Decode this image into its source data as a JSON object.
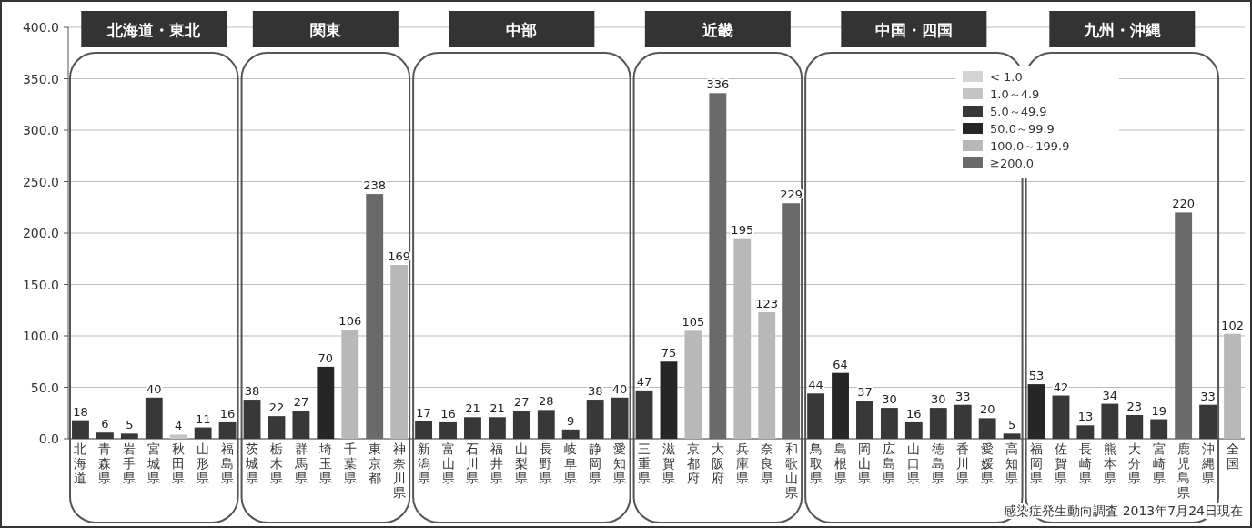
{
  "chart_data": {
    "type": "bar",
    "categories": [
      "北海道",
      "青森県",
      "岩手県",
      "宮城県",
      "秋田県",
      "山形県",
      "福島県",
      "茨城県",
      "栃木県",
      "群馬県",
      "埼玉県",
      "千葉県",
      "東京都",
      "神奈川県",
      "新潟県",
      "富山県",
      "石川県",
      "福井県",
      "山梨県",
      "長野県",
      "岐阜県",
      "静岡県",
      "愛知県",
      "三重県",
      "滋賀県",
      "京都府",
      "大阪府",
      "兵庫県",
      "奈良県",
      "和歌山県",
      "鳥取県",
      "島根県",
      "岡山県",
      "広島県",
      "山口県",
      "徳島県",
      "香川県",
      "愛媛県",
      "高知県",
      "福岡県",
      "佐賀県",
      "長崎県",
      "熊本県",
      "大分県",
      "宮崎県",
      "鹿児島県",
      "沖縄県",
      "全国"
    ],
    "series": [
      {
        "name": "< 1.0",
        "color": "#d4d4d4",
        "values": [
          null,
          null,
          null,
          null,
          null,
          null,
          null,
          null,
          null,
          null,
          null,
          null,
          null,
          null,
          null,
          null,
          null,
          null,
          null,
          null,
          null,
          null,
          null,
          null,
          null,
          null,
          null,
          null,
          null,
          null,
          null,
          null,
          null,
          null,
          null,
          null,
          null,
          null,
          null,
          null,
          null,
          null,
          null,
          null,
          null,
          null,
          null,
          null
        ]
      },
      {
        "name": "1.0～4.9",
        "color": "#c4c4c4",
        "values": [
          null,
          null,
          null,
          null,
          4,
          null,
          null,
          null,
          null,
          null,
          null,
          null,
          null,
          null,
          null,
          null,
          null,
          null,
          null,
          null,
          null,
          null,
          null,
          null,
          null,
          null,
          null,
          null,
          null,
          null,
          null,
          null,
          null,
          null,
          null,
          null,
          null,
          null,
          null,
          null,
          null,
          null,
          null,
          null,
          null,
          null,
          null,
          null
        ]
      },
      {
        "name": "5.0～49.9",
        "color": "#383838",
        "values": [
          18,
          6,
          5,
          40,
          null,
          11,
          16,
          38,
          22,
          27,
          null,
          null,
          null,
          null,
          17,
          16,
          21,
          21,
          27,
          28,
          9,
          38,
          40,
          47,
          null,
          null,
          null,
          null,
          null,
          null,
          44,
          null,
          37,
          30,
          16,
          30,
          33,
          20,
          5,
          null,
          42,
          13,
          34,
          23,
          19,
          null,
          33,
          null
        ]
      },
      {
        "name": "50.0～99.9",
        "color": "#262626",
        "values": [
          null,
          null,
          null,
          null,
          null,
          null,
          null,
          null,
          null,
          null,
          70,
          null,
          null,
          null,
          null,
          null,
          null,
          null,
          null,
          null,
          null,
          null,
          null,
          null,
          75,
          null,
          null,
          null,
          null,
          null,
          null,
          64,
          null,
          null,
          null,
          null,
          null,
          null,
          null,
          53,
          null,
          null,
          null,
          null,
          null,
          null,
          null,
          null
        ]
      },
      {
        "name": "100.0～199.9",
        "color": "#b8b8b8",
        "values": [
          null,
          null,
          null,
          null,
          null,
          null,
          null,
          null,
          null,
          null,
          null,
          106,
          null,
          169,
          null,
          null,
          null,
          null,
          null,
          null,
          null,
          null,
          null,
          null,
          null,
          105,
          null,
          195,
          123,
          null,
          null,
          null,
          null,
          null,
          null,
          null,
          null,
          null,
          null,
          null,
          null,
          null,
          null,
          null,
          null,
          null,
          null,
          102
        ]
      },
      {
        "name": "≧200.0",
        "color": "#6a6a6a",
        "values": [
          null,
          null,
          null,
          null,
          null,
          null,
          null,
          null,
          null,
          null,
          null,
          null,
          238,
          null,
          null,
          null,
          null,
          null,
          null,
          null,
          null,
          null,
          null,
          null,
          null,
          null,
          336,
          null,
          null,
          229,
          null,
          null,
          null,
          null,
          null,
          null,
          null,
          null,
          null,
          null,
          null,
          null,
          null,
          null,
          null,
          220,
          null,
          null
        ]
      }
    ],
    "ylim": [
      0,
      400
    ],
    "yticks": [
      {
        "value": 0,
        "label": "0.0"
      },
      {
        "value": 50,
        "label": "50.0"
      },
      {
        "value": 100,
        "label": "100.0"
      },
      {
        "value": 150,
        "label": "150.0"
      },
      {
        "value": 200,
        "label": "200.0"
      },
      {
        "value": 250,
        "label": "250.0"
      },
      {
        "value": 300,
        "label": "300.0"
      },
      {
        "value": 350,
        "label": "350.0"
      },
      {
        "value": 400,
        "label": "400.0"
      }
    ],
    "grid": "y",
    "legend": "top right",
    "data_labels": true,
    "annotations": [
      "北海道・東北",
      "関東",
      "中部",
      "近畿",
      "中国・四国",
      "九州・沖縄",
      "感染症発生動向調査 2013年7月24日現在"
    ]
  }
}
